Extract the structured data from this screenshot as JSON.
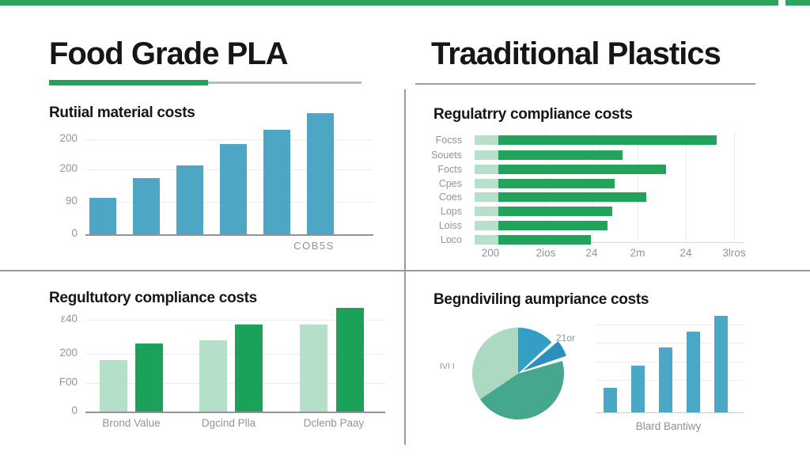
{
  "colors": {
    "top_strip": "#2ca45e",
    "accent_green": "#22a35c",
    "light_green": "#b7dfcb",
    "blue_bar": "#4da6c4",
    "gridline": "#ececec",
    "axis_text": "#8e959b",
    "title_text": "#161616",
    "divider": "#9a9a9a"
  },
  "headers": {
    "left_title": "Food Grade PLA",
    "right_title": "Traaditional Plastics"
  },
  "chart_data": [
    {
      "id": "raw-material-costs",
      "type": "bar",
      "title": "Rutiial material costs",
      "y_ticks": [
        "200",
        "200",
        "90",
        "0"
      ],
      "x_label": "COB5S",
      "values": [
        100,
        155,
        190,
        250,
        290,
        335
      ],
      "ylim": [
        0,
        350
      ],
      "grid": true,
      "bar_color": "#4da6c4",
      "legend": "none"
    },
    {
      "id": "regulatory-compliance-costs-horizontal",
      "type": "bar-horizontal",
      "title": "Regulatrry compliance costs",
      "categories": [
        "Focss",
        "Souets",
        "Focts",
        "Cpes",
        "Coes",
        "Lops",
        "Loiss",
        "Loco"
      ],
      "values": [
        100,
        61,
        79,
        58,
        71,
        57,
        55,
        48
      ],
      "x_ticks": [
        "200",
        "2ios",
        "24",
        "2m",
        "24",
        "3lros"
      ],
      "bar_color": "#22a35c",
      "bar_prefix_color": "#b7dfcb",
      "grid": true,
      "legend": "none"
    },
    {
      "id": "regulatory-compliance-costs-grouped",
      "type": "grouped-bar",
      "title": "Regultutory compliance costs",
      "y_ticks": [
        "ε40",
        "200",
        "F00",
        "0"
      ],
      "categories": [
        "Brond Value",
        "Dgcind Plla",
        "Dclenb Paay"
      ],
      "series": [
        {
          "name": "light-green",
          "color": "#b5dfc9",
          "values": [
            180,
            250,
            305
          ]
        },
        {
          "name": "dark-green",
          "color": "#1ba15a",
          "values": [
            240,
            305,
            365
          ]
        }
      ],
      "ylim": [
        0,
        380
      ],
      "grid": true,
      "legend": "none"
    },
    {
      "id": "mixed-pie-and-bar",
      "type": "pie+bar",
      "title": "Begndiviling aumpriance costs",
      "pie": {
        "annotation_right": "21or",
        "annotation_left": "IVI I",
        "slices": [
          {
            "name": "blue",
            "color": "#339fc6",
            "start_deg": 0,
            "end_deg": 47,
            "pct": 13,
            "exploded": false
          },
          {
            "name": "dark-blue",
            "color": "#2d8fbd",
            "start_deg": 50,
            "end_deg": 71,
            "pct": 6,
            "exploded": true
          },
          {
            "name": "sea-green",
            "color": "#46a78f",
            "start_deg": 74,
            "end_deg": 236,
            "pct": 45,
            "exploded": false
          },
          {
            "name": "light-green",
            "color": "#abd9c2",
            "start_deg": 236,
            "end_deg": 360,
            "pct": 36,
            "exploded": false
          }
        ]
      },
      "bar": {
        "values": [
          25,
          48,
          67,
          84,
          100
        ],
        "x_label": "Blard Bantiwy",
        "bar_color": "#4aa7c6"
      }
    }
  ]
}
